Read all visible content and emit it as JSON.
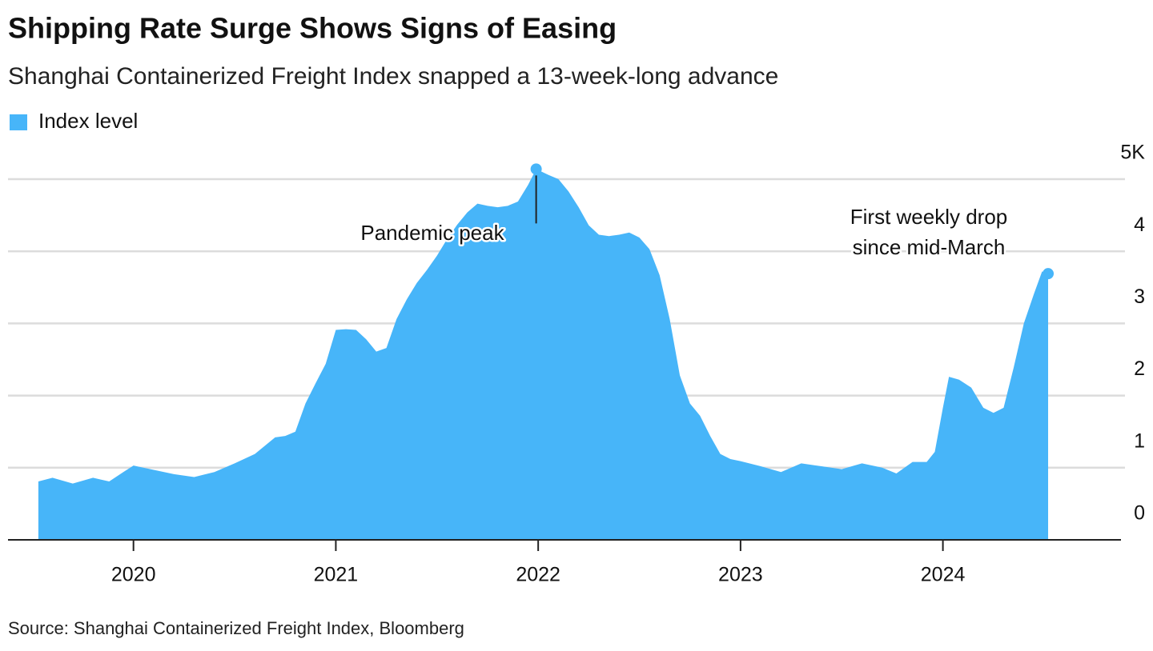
{
  "chart_data": {
    "type": "area",
    "title": "Shipping Rate Surge Shows Signs of Easing",
    "subtitle": "Shanghai Containerized Freight Index snapped a 13-week-long advance",
    "source": "Source: Shanghai Containerized Freight Index, Bloomberg",
    "annotations": [
      {
        "lines": [
          "Pandemic peak"
        ]
      },
      {
        "lines": [
          "First weekly drop",
          "since mid-March"
        ]
      }
    ],
    "xlim": [
      2019.38,
      2024.88
    ],
    "xticks": [
      2020,
      2021,
      2022,
      2023,
      2024
    ],
    "ylim": [
      0,
      5
    ],
    "yticks": [
      0,
      1,
      2,
      3,
      4,
      {
        "value": 5,
        "label": "5K"
      }
    ],
    "grid": true,
    "legend_position": "top-left",
    "x": [
      2019.53,
      2019.6,
      2019.7,
      2019.8,
      2019.88,
      2019.95,
      2020.0,
      2020.1,
      2020.2,
      2020.3,
      2020.4,
      2020.5,
      2020.6,
      2020.7,
      2020.75,
      2020.8,
      2020.85,
      2020.9,
      2020.95,
      2021.0,
      2021.05,
      2021.1,
      2021.15,
      2021.2,
      2021.25,
      2021.3,
      2021.35,
      2021.4,
      2021.45,
      2021.5,
      2021.55,
      2021.6,
      2021.65,
      2021.7,
      2021.75,
      2021.8,
      2021.85,
      2021.9,
      2021.95,
      2021.99,
      2022.05,
      2022.1,
      2022.15,
      2022.2,
      2022.25,
      2022.3,
      2022.35,
      2022.4,
      2022.45,
      2022.5,
      2022.55,
      2022.6,
      2022.65,
      2022.7,
      2022.75,
      2022.8,
      2022.85,
      2022.9,
      2022.95,
      2023.0,
      2023.1,
      2023.2,
      2023.3,
      2023.4,
      2023.5,
      2023.6,
      2023.7,
      2023.77,
      2023.85,
      2023.92,
      2023.96,
      2024.0,
      2024.03,
      2024.08,
      2024.14,
      2024.2,
      2024.25,
      2024.3,
      2024.35,
      2024.4,
      2024.45,
      2024.49,
      2024.52
    ],
    "series": [
      {
        "name": "Index level",
        "color": "#47b5f9",
        "values": [
          0.81,
          0.86,
          0.78,
          0.86,
          0.81,
          0.94,
          1.03,
          0.97,
          0.91,
          0.87,
          0.94,
          1.06,
          1.19,
          1.42,
          1.44,
          1.5,
          1.89,
          2.17,
          2.44,
          2.91,
          2.92,
          2.91,
          2.78,
          2.61,
          2.66,
          3.06,
          3.33,
          3.56,
          3.74,
          3.94,
          4.17,
          4.37,
          4.54,
          4.66,
          4.63,
          4.61,
          4.63,
          4.69,
          4.92,
          5.14,
          5.06,
          5.0,
          4.83,
          4.61,
          4.36,
          4.23,
          4.21,
          4.23,
          4.26,
          4.19,
          4.03,
          3.67,
          3.06,
          2.28,
          1.89,
          1.72,
          1.44,
          1.19,
          1.12,
          1.09,
          1.02,
          0.94,
          1.06,
          1.02,
          0.98,
          1.06,
          1.0,
          0.92,
          1.08,
          1.08,
          1.22,
          1.83,
          2.26,
          2.22,
          2.11,
          1.83,
          1.76,
          1.83,
          2.39,
          3.0,
          3.41,
          3.72,
          3.69
        ]
      }
    ]
  }
}
